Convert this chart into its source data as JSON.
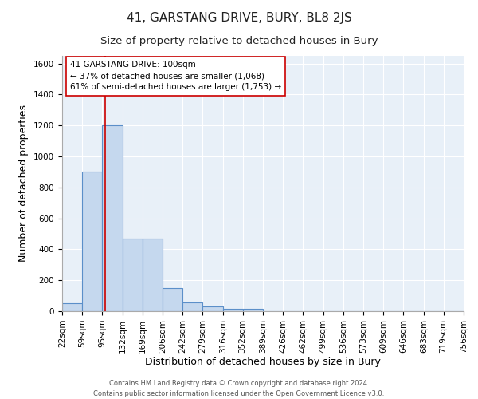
{
  "title": "41, GARSTANG DRIVE, BURY, BL8 2JS",
  "subtitle": "Size of property relative to detached houses in Bury",
  "xlabel": "Distribution of detached houses by size in Bury",
  "ylabel": "Number of detached properties",
  "bin_edges": [
    22,
    59,
    95,
    132,
    169,
    206,
    242,
    279,
    316,
    352,
    389,
    426,
    462,
    499,
    536,
    573,
    609,
    646,
    683,
    719,
    756
  ],
  "bar_heights": [
    50,
    900,
    1200,
    470,
    470,
    150,
    55,
    30,
    15,
    15,
    0,
    0,
    0,
    0,
    0,
    0,
    0,
    0,
    0,
    0
  ],
  "bar_color": "#c5d8ee",
  "bar_edge_color": "#5b8fc9",
  "bar_edge_width": 0.8,
  "red_line_x": 100,
  "red_line_color": "#cc0000",
  "ylim": [
    0,
    1650
  ],
  "yticks": [
    0,
    200,
    400,
    600,
    800,
    1000,
    1200,
    1400,
    1600
  ],
  "annotation_text": "41 GARSTANG DRIVE: 100sqm\n← 37% of detached houses are smaller (1,068)\n61% of semi-detached houses are larger (1,753) →",
  "annotation_box_color": "#ffffff",
  "annotation_border_color": "#cc0000",
  "footer_line1": "Contains HM Land Registry data © Crown copyright and database right 2024.",
  "footer_line2": "Contains public sector information licensed under the Open Government Licence v3.0.",
  "background_color": "#e8f0f8",
  "grid_color": "#d0d8e8",
  "title_fontsize": 11,
  "subtitle_fontsize": 9.5,
  "tick_label_fontsize": 7.5,
  "axis_label_fontsize": 9,
  "annotation_fontsize": 7.5,
  "footer_fontsize": 6
}
